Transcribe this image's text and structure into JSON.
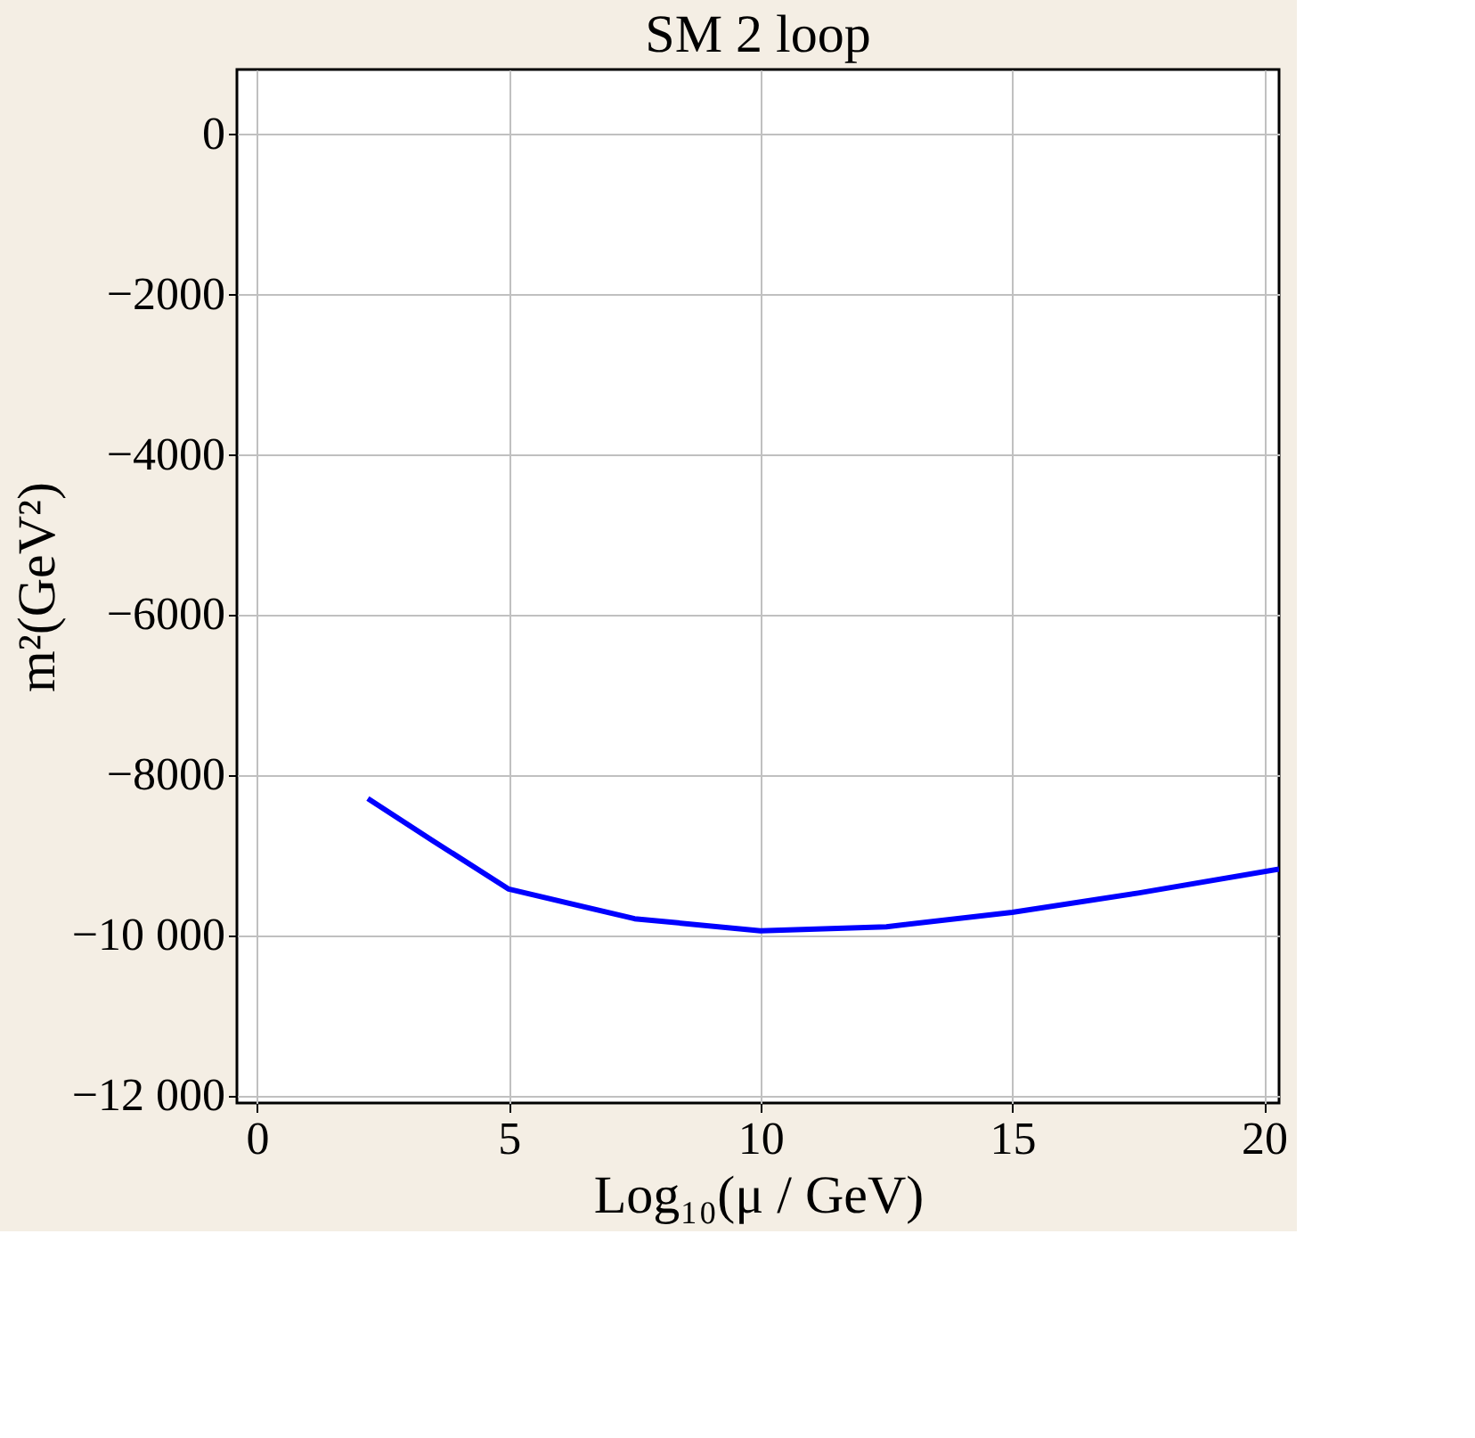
{
  "chart_data": {
    "type": "line",
    "title": "SM 2 loop",
    "xlabel": "Log₁₀(μ / GeV)",
    "ylabel": "m²(GeV²)",
    "x": [
      2.2,
      3.5,
      5,
      7.5,
      10,
      12.5,
      15,
      17.5,
      20.3
    ],
    "series": [
      {
        "color": "#0000ff",
        "values": [
          -8300,
          -8830,
          -9430,
          -9800,
          -9950,
          -9900,
          -9720,
          -9480,
          -9180
        ]
      }
    ],
    "xlim": [
      -0.4,
      20.3
    ],
    "xticks": [
      0,
      5,
      10,
      15,
      20
    ],
    "ylim": [
      -12100,
      800
    ],
    "yticks": [
      0,
      -2000,
      -4000,
      -6000,
      -8000,
      {
        "value": -10000,
        "label": "−10 000"
      },
      {
        "value": -12000,
        "label": "−12 000"
      }
    ],
    "grid": true,
    "line_style": "solid",
    "marker": "none"
  }
}
